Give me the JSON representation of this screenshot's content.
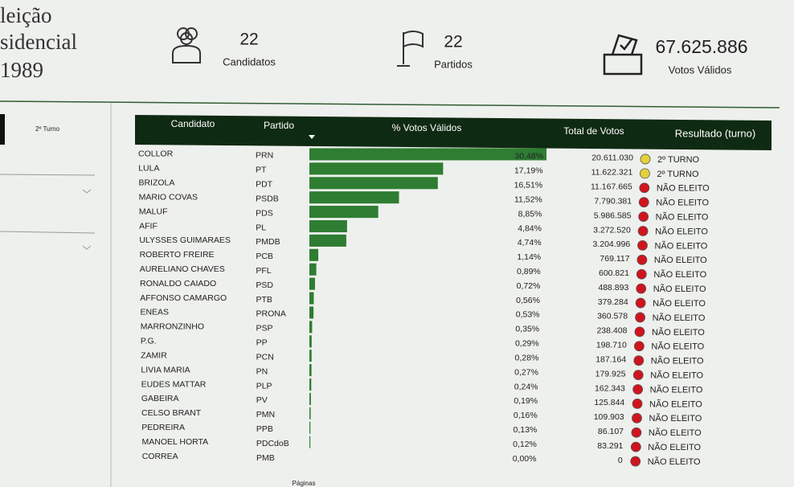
{
  "header": {
    "title_lines": [
      "leição",
      "sidencial",
      "1989"
    ],
    "stats": [
      {
        "value": "22",
        "label": "Candidatos"
      },
      {
        "value": "22",
        "label": "Partidos"
      },
      {
        "value": "67.625.886",
        "label": "Votos Válidos"
      }
    ]
  },
  "sidebar": {
    "filter": "2º Turno"
  },
  "table": {
    "columns": [
      "Candidato",
      "Partido",
      "% Votos Válidos",
      "Total de Votos",
      "Resultado (turno)"
    ],
    "bar_color": "#2e7d32",
    "rows": [
      {
        "candidate": "COLLOR",
        "party": "PRN",
        "pct": {
          "value": 30.48,
          "label": "30,48%"
        },
        "votes": "20.611.030",
        "result": "2º TURNO",
        "dot_color": "#e3d23c"
      },
      {
        "candidate": "LULA",
        "party": "PT",
        "pct": {
          "value": 17.19,
          "label": "17,19%"
        },
        "votes": "11.622.321",
        "result": "2º TURNO",
        "dot_color": "#e3d23c"
      },
      {
        "candidate": "BRIZOLA",
        "party": "PDT",
        "pct": {
          "value": 16.51,
          "label": "16,51%"
        },
        "votes": "11.167.665",
        "result": "NÃO ELEITO",
        "dot_color": "#d0141e"
      },
      {
        "candidate": "MARIO COVAS",
        "party": "PSDB",
        "pct": {
          "value": 11.52,
          "label": "11,52%"
        },
        "votes": "7.790.381",
        "result": "NÃO ELEITO",
        "dot_color": "#d0141e"
      },
      {
        "candidate": "MALUF",
        "party": "PDS",
        "pct": {
          "value": 8.85,
          "label": "8,85%"
        },
        "votes": "5.986.585",
        "result": "NÃO ELEITO",
        "dot_color": "#d0141e"
      },
      {
        "candidate": "AFIF",
        "party": "PL",
        "pct": {
          "value": 4.84,
          "label": "4,84%"
        },
        "votes": "3.272.520",
        "result": "NÃO ELEITO",
        "dot_color": "#d0141e"
      },
      {
        "candidate": "ULYSSES GUIMARAES",
        "party": "PMDB",
        "pct": {
          "value": 4.74,
          "label": "4,74%"
        },
        "votes": "3.204.996",
        "result": "NÃO ELEITO",
        "dot_color": "#d0141e"
      },
      {
        "candidate": "ROBERTO FREIRE",
        "party": "PCB",
        "pct": {
          "value": 1.14,
          "label": "1,14%"
        },
        "votes": "769.117",
        "result": "NÃO ELEITO",
        "dot_color": "#d0141e"
      },
      {
        "candidate": "AURELIANO CHAVES",
        "party": "PFL",
        "pct": {
          "value": 0.89,
          "label": "0,89%"
        },
        "votes": "600.821",
        "result": "NÃO ELEITO",
        "dot_color": "#d0141e"
      },
      {
        "candidate": "RONALDO CAIADO",
        "party": "PSD",
        "pct": {
          "value": 0.72,
          "label": "0,72%"
        },
        "votes": "488.893",
        "result": "NÃO ELEITO",
        "dot_color": "#d0141e"
      },
      {
        "candidate": "AFFONSO CAMARGO",
        "party": "PTB",
        "pct": {
          "value": 0.56,
          "label": "0,56%"
        },
        "votes": "379.284",
        "result": "NÃO ELEITO",
        "dot_color": "#d0141e"
      },
      {
        "candidate": "ENEAS",
        "party": "PRONA",
        "pct": {
          "value": 0.53,
          "label": "0,53%"
        },
        "votes": "360.578",
        "result": "NÃO ELEITO",
        "dot_color": "#d0141e"
      },
      {
        "candidate": "MARRONZINHO",
        "party": "PSP",
        "pct": {
          "value": 0.35,
          "label": "0,35%"
        },
        "votes": "238.408",
        "result": "NÃO ELEITO",
        "dot_color": "#d0141e"
      },
      {
        "candidate": "P.G.",
        "party": "PP",
        "pct": {
          "value": 0.29,
          "label": "0,29%"
        },
        "votes": "198.710",
        "result": "NÃO ELEITO",
        "dot_color": "#d0141e"
      },
      {
        "candidate": "ZAMIR",
        "party": "PCN",
        "pct": {
          "value": 0.28,
          "label": "0,28%"
        },
        "votes": "187.164",
        "result": "NÃO ELEITO",
        "dot_color": "#d0141e"
      },
      {
        "candidate": "LIVIA MARIA",
        "party": "PN",
        "pct": {
          "value": 0.27,
          "label": "0,27%"
        },
        "votes": "179.925",
        "result": "NÃO ELEITO",
        "dot_color": "#d0141e"
      },
      {
        "candidate": "EUDES MATTAR",
        "party": "PLP",
        "pct": {
          "value": 0.24,
          "label": "0,24%"
        },
        "votes": "162.343",
        "result": "NÃO ELEITO",
        "dot_color": "#d0141e"
      },
      {
        "candidate": "GABEIRA",
        "party": "PV",
        "pct": {
          "value": 0.19,
          "label": "0,19%"
        },
        "votes": "125.844",
        "result": "NÃO ELEITO",
        "dot_color": "#d0141e"
      },
      {
        "candidate": "CELSO BRANT",
        "party": "PMN",
        "pct": {
          "value": 0.16,
          "label": "0,16%"
        },
        "votes": "109.903",
        "result": "NÃO ELEITO",
        "dot_color": "#d0141e"
      },
      {
        "candidate": "PEDREIRA",
        "party": "PPB",
        "pct": {
          "value": 0.13,
          "label": "0,13%"
        },
        "votes": "86.107",
        "result": "NÃO ELEITO",
        "dot_color": "#d0141e"
      },
      {
        "candidate": "MANOEL HORTA",
        "party": "PDCdoB",
        "pct": {
          "value": 0.12,
          "label": "0,12%"
        },
        "votes": "83.291",
        "result": "NÃO ELEITO",
        "dot_color": "#d0141e"
      },
      {
        "candidate": "CORREA",
        "party": "PMB",
        "pct": {
          "value": 0,
          "label": "0,00%"
        },
        "votes": "0",
        "result": "NÃO ELEITO",
        "dot_color": "#d0141e"
      }
    ]
  },
  "footer": {
    "pages": "Páginas"
  }
}
